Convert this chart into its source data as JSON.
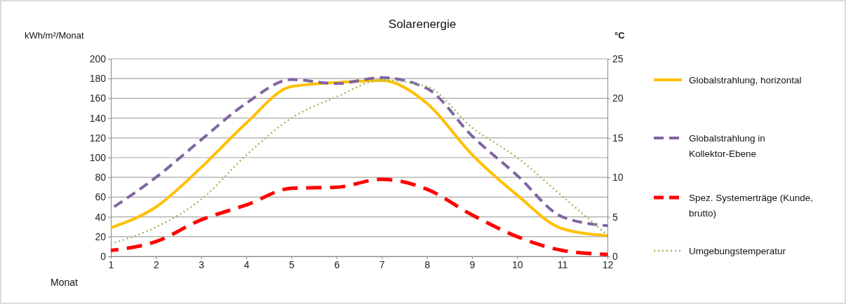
{
  "chart_data": {
    "type": "line",
    "title": "Solarenergie",
    "xlabel": "Monat",
    "ylabel": "kWh/m²/Monat",
    "y2label": "°C",
    "x": [
      1,
      2,
      3,
      4,
      5,
      6,
      7,
      8,
      9,
      10,
      11,
      12
    ],
    "xlim": [
      1,
      12
    ],
    "xticks": [
      1,
      2,
      3,
      4,
      5,
      6,
      7,
      8,
      9,
      10,
      11,
      12
    ],
    "ylim": [
      0,
      200
    ],
    "yticks": [
      0,
      20,
      40,
      60,
      80,
      100,
      120,
      140,
      160,
      180,
      200
    ],
    "y2lim": [
      0,
      25
    ],
    "y2ticks": [
      0,
      5,
      10,
      15,
      20,
      25
    ],
    "grid": "y",
    "legend": "right",
    "marker": "none",
    "series": [
      {
        "name": "Globalstrahlung, horizontal",
        "color": "#ffc000",
        "line_style": "solid",
        "values": [
          29,
          50,
          90,
          135,
          172,
          176,
          178,
          155,
          103,
          62,
          28,
          21
        ]
      },
      {
        "name": "Globalstrahlung in Kollektor-Ebene",
        "color": "#8064a2",
        "line_style": "dashed",
        "values": [
          48,
          80,
          118,
          155,
          179,
          175,
          181,
          170,
          122,
          82,
          40,
          31
        ]
      },
      {
        "name": "Spez. Systemerträge (Kunde, brutto)",
        "color": "#ff0000",
        "line_style": "longdash",
        "values": [
          6,
          15,
          37,
          52,
          69,
          70,
          78,
          68,
          42,
          20,
          6,
          2
        ]
      },
      {
        "name": "Umgebungstemperatur",
        "color": "#9bbb59",
        "line_style": "dotted",
        "axis": "y2",
        "values": [
          1.6,
          3.7,
          7.2,
          12.8,
          17.5,
          20.2,
          22.3,
          21.5,
          16.3,
          12.5,
          7.6,
          2.7
        ]
      }
    ]
  }
}
